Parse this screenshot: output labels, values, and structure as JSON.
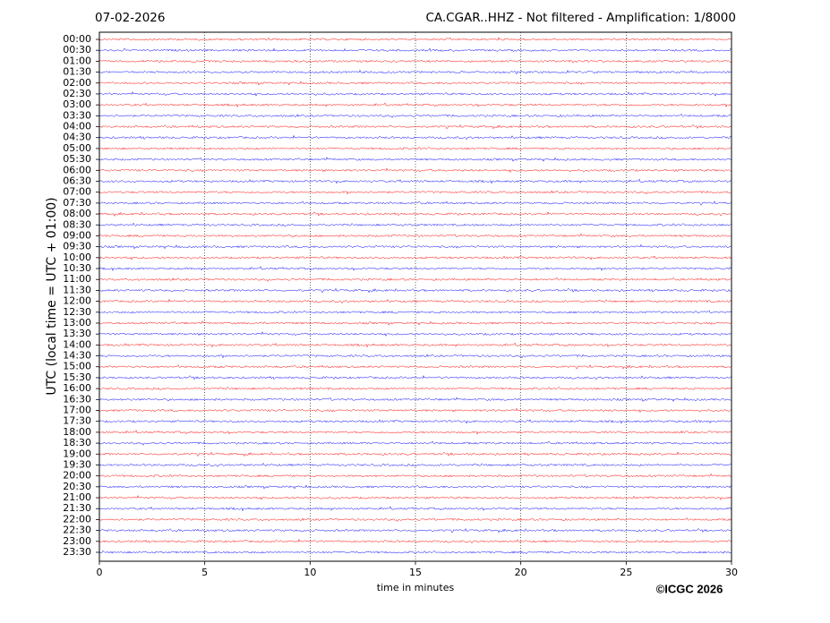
{
  "chart_data": {
    "type": "helicorder",
    "date": "07-02-2026",
    "title": "CA.CGAR..HHZ - Not filtered - Amplification: 1/8000",
    "y_label": "UTC (local time = UTC + 01:00)",
    "x_label": "time in minutes",
    "copyright": "©ICGC 2026",
    "categories": [
      "00:00",
      "00:30",
      "01:00",
      "01:30",
      "02:00",
      "02:30",
      "03:00",
      "03:30",
      "04:00",
      "04:30",
      "05:00",
      "05:30",
      "06:00",
      "06:30",
      "07:00",
      "07:30",
      "08:00",
      "08:30",
      "09:00",
      "09:30",
      "10:00",
      "10:30",
      "11:00",
      "11:30",
      "12:00",
      "12:30",
      "13:00",
      "13:30",
      "14:00",
      "14:30",
      "15:00",
      "15:30",
      "16:00",
      "16:30",
      "17:00",
      "17:30",
      "18:00",
      "18:30",
      "19:00",
      "19:30",
      "20:00",
      "20:30",
      "21:00",
      "21:30",
      "22:00",
      "22:30",
      "23:00",
      "23:30"
    ],
    "colors": [
      "#ff0000",
      "#0000ff"
    ],
    "xlim": [
      0,
      30
    ],
    "xticks": [
      0,
      5,
      10,
      15,
      20,
      25,
      30
    ],
    "grid": true
  }
}
